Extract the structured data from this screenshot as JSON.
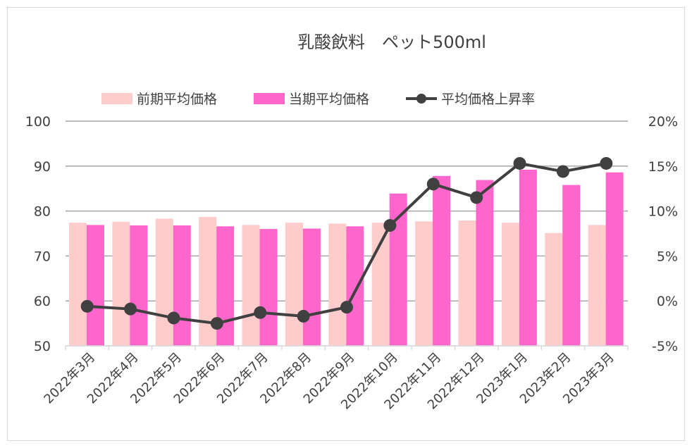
{
  "chart_data": {
    "type": "bar",
    "title": "乳酸飲料　ペット500ml",
    "categories": [
      "2022年3月",
      "2022年4月",
      "2022年5月",
      "2022年6月",
      "2022年7月",
      "2022年8月",
      "2022年9月",
      "2022年10月",
      "2022年11月",
      "2022年12月",
      "2023年1月",
      "2023年2月",
      "2023年3月"
    ],
    "series": [
      {
        "name": "前期平均価格",
        "kind": "bar",
        "axis": "left",
        "color": "#ffcccc",
        "values": [
          77.4,
          77.6,
          78.3,
          78.7,
          76.9,
          77.4,
          77.2,
          77.4,
          77.7,
          77.9,
          77.4,
          75.1,
          76.9
        ]
      },
      {
        "name": "当期平均価格",
        "kind": "bar",
        "axis": "left",
        "color": "#ff66cc",
        "values": [
          76.9,
          76.8,
          76.8,
          76.6,
          76.0,
          76.1,
          76.6,
          83.9,
          87.8,
          86.9,
          89.2,
          85.8,
          88.6
        ]
      },
      {
        "name": "平均価格上昇率",
        "kind": "line",
        "axis": "right",
        "color": "#404040",
        "values": [
          -0.6,
          -0.9,
          -1.9,
          -2.5,
          -1.3,
          -1.7,
          -0.7,
          8.4,
          13.0,
          11.5,
          15.3,
          14.4,
          15.3
        ]
      }
    ],
    "ylim": [
      50,
      100
    ],
    "yticks": [
      "100",
      "90",
      "80",
      "70",
      "60",
      "50"
    ],
    "y2lim": [
      -5,
      20
    ],
    "y2ticks": [
      "20%",
      "15%",
      "10%",
      "5%",
      "0%",
      "-5%"
    ],
    "grid": true,
    "legend": "top"
  }
}
